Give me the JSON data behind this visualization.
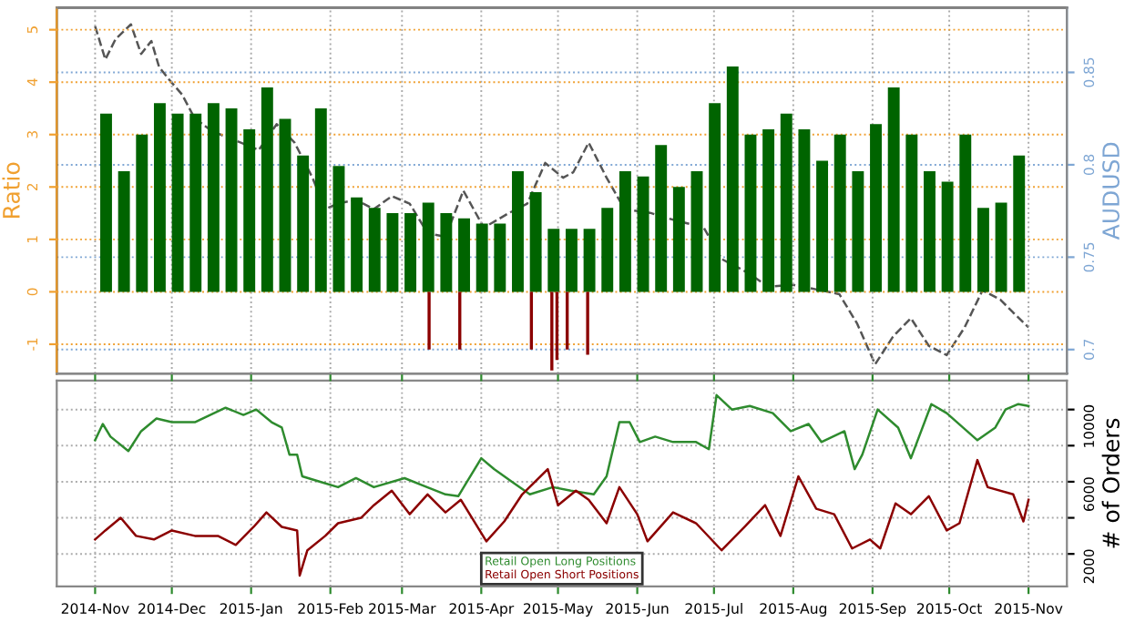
{
  "chart_data": [
    {
      "type": "bar",
      "ylabel": "Ratio",
      "y2label": "AUDUSD",
      "tick_labels": "y",
      "grid": true,
      "xlim": [
        "2014-10-17",
        "2015-11-16"
      ],
      "xticks": [
        {
          "value": "2014-11-01",
          "label": null
        },
        {
          "value": "2014-12-01",
          "label": null
        },
        {
          "value": "2015-01-01",
          "label": null
        },
        {
          "value": "2015-02-01",
          "label": null
        },
        {
          "value": "2015-03-01",
          "label": null
        },
        {
          "value": "2015-04-01",
          "label": null
        },
        {
          "value": "2015-05-01",
          "label": null
        },
        {
          "value": "2015-06-01",
          "label": null
        },
        {
          "value": "2015-07-01",
          "label": null
        },
        {
          "value": "2015-08-01",
          "label": null
        },
        {
          "value": "2015-09-01",
          "label": null
        },
        {
          "value": "2015-10-01",
          "label": null
        },
        {
          "value": "2015-11-01",
          "label": null
        }
      ],
      "ylim": [
        -1.56,
        5.42
      ],
      "yticks": [
        -1,
        0,
        1,
        2,
        3,
        4,
        5
      ],
      "y2lim": [
        0.687,
        0.885
      ],
      "y2ticks": [
        0.7,
        0.75,
        0.8,
        0.85
      ],
      "series": [
        {
          "type": "bar",
          "color": "#006400",
          "x": [
            "2014-11-03",
            "2014-11-10",
            "2014-11-17",
            "2014-11-24",
            "2014-12-01",
            "2014-12-08",
            "2014-12-15",
            "2014-12-22",
            "2014-12-29",
            "2015-01-05",
            "2015-01-12",
            "2015-01-19",
            "2015-01-26",
            "2015-02-02",
            "2015-02-09",
            "2015-02-16",
            "2015-02-23",
            "2015-03-02",
            "2015-03-09",
            "2015-03-16",
            "2015-03-23",
            "2015-03-30",
            "2015-04-06",
            "2015-04-13",
            "2015-04-20",
            "2015-04-27",
            "2015-05-04",
            "2015-05-11",
            "2015-05-18",
            "2015-05-25",
            "2015-06-01",
            "2015-06-08",
            "2015-06-15",
            "2015-06-22",
            "2015-06-29",
            "2015-07-06",
            "2015-07-13",
            "2015-07-20",
            "2015-07-27",
            "2015-08-03",
            "2015-08-10",
            "2015-08-17",
            "2015-08-24",
            "2015-08-31",
            "2015-09-07",
            "2015-09-14",
            "2015-09-21",
            "2015-09-28",
            "2015-10-05",
            "2015-10-12",
            "2015-10-19",
            "2015-10-26"
          ],
          "values": [
            3.4,
            2.3,
            3.0,
            3.6,
            3.4,
            3.4,
            3.6,
            3.5,
            3.1,
            3.9,
            3.3,
            2.6,
            3.5,
            2.4,
            1.8,
            1.6,
            1.5,
            1.5,
            1.7,
            1.5,
            1.4,
            1.3,
            1.3,
            2.3,
            1.9,
            1.2,
            1.2,
            1.2,
            1.6,
            2.3,
            2.2,
            2.8,
            2.0,
            2.3,
            3.6,
            4.3,
            3.0,
            3.1,
            3.4,
            3.1,
            2.5,
            3.0,
            2.3,
            3.2,
            3.9,
            3.0,
            2.3,
            2.1,
            3.0,
            1.6,
            1.7,
            2.6
          ]
        },
        {
          "type": "bar",
          "color": "#8b0000",
          "x": [
            "2015-03-11",
            "2015-03-23",
            "2015-04-20",
            "2015-04-28",
            "2015-04-30",
            "2015-05-04",
            "2015-05-12"
          ],
          "values": [
            -1.1,
            -1.1,
            -1.1,
            -1.5,
            -1.3,
            -1.1,
            -1.2
          ]
        },
        {
          "type": "line",
          "axis": "y2",
          "color": "#555555",
          "line_style": "dashed",
          "x": [
            "2014-11-01",
            "2014-11-05",
            "2014-11-09",
            "2014-11-15",
            "2014-11-19",
            "2014-11-23",
            "2014-11-26",
            "2014-11-30",
            "2014-12-05",
            "2014-12-10",
            "2014-12-17",
            "2014-12-28",
            "2015-01-04",
            "2015-01-11",
            "2015-01-18",
            "2015-01-25",
            "2015-01-30",
            "2015-02-04",
            "2015-02-11",
            "2015-02-18",
            "2015-02-25",
            "2015-03-04",
            "2015-03-11",
            "2015-03-18",
            "2015-03-25",
            "2015-04-02",
            "2015-04-12",
            "2015-04-19",
            "2015-04-26",
            "2015-05-03",
            "2015-05-07",
            "2015-05-13",
            "2015-05-20",
            "2015-05-27",
            "2015-06-06",
            "2015-06-13",
            "2015-06-27",
            "2015-07-04",
            "2015-07-15",
            "2015-07-22",
            "2015-08-01",
            "2015-08-12",
            "2015-08-19",
            "2015-08-26",
            "2015-09-02",
            "2015-09-09",
            "2015-09-16",
            "2015-09-23",
            "2015-09-30",
            "2015-10-07",
            "2015-10-14",
            "2015-10-21",
            "2015-10-26",
            "2015-11-01"
          ],
          "values": [
            0.875,
            0.857,
            0.868,
            0.876,
            0.86,
            0.867,
            0.853,
            0.846,
            0.838,
            0.825,
            0.818,
            0.812,
            0.808,
            0.822,
            0.812,
            0.793,
            0.776,
            0.779,
            0.781,
            0.776,
            0.783,
            0.779,
            0.763,
            0.761,
            0.786,
            0.766,
            0.774,
            0.779,
            0.801,
            0.793,
            0.796,
            0.812,
            0.793,
            0.776,
            0.774,
            0.771,
            0.766,
            0.749,
            0.741,
            0.734,
            0.735,
            0.732,
            0.73,
            0.714,
            0.692,
            0.707,
            0.717,
            0.702,
            0.697,
            0.712,
            0.732,
            0.727,
            0.72,
            0.712
          ]
        }
      ]
    },
    {
      "type": "line",
      "ylabel": "# of Orders",
      "grid": true,
      "legend": "bottom",
      "xlim": [
        "2014-10-17",
        "2015-11-16"
      ],
      "xticks": [
        {
          "value": "2014-11-01",
          "label": "2014-Nov"
        },
        {
          "value": "2014-12-01",
          "label": "2014-Dec"
        },
        {
          "value": "2015-01-01",
          "label": "2015-Jan"
        },
        {
          "value": "2015-02-01",
          "label": "2015-Feb"
        },
        {
          "value": "2015-03-01",
          "label": "2015-Mar"
        },
        {
          "value": "2015-04-01",
          "label": "2015-Apr"
        },
        {
          "value": "2015-05-01",
          "label": "2015-May"
        },
        {
          "value": "2015-06-01",
          "label": "2015-Jun"
        },
        {
          "value": "2015-07-01",
          "label": "2015-Jul"
        },
        {
          "value": "2015-08-01",
          "label": "2015-Aug"
        },
        {
          "value": "2015-09-01",
          "label": "2015-Sep"
        },
        {
          "value": "2015-10-01",
          "label": "2015-Oct"
        },
        {
          "value": "2015-11-01",
          "label": "2015-Nov"
        }
      ],
      "ylim": [
        200,
        11600
      ],
      "yticks": [
        2000,
        {
          "value": 4000,
          "label": null
        },
        6000,
        {
          "value": 8000,
          "label": null
        },
        10000
      ],
      "series": [
        {
          "name": "Retail Open Long Positions",
          "color": "#2e8b2e",
          "x": [
            "2014-11-01",
            "2014-11-04",
            "2014-11-07",
            "2014-11-14",
            "2014-11-19",
            "2014-11-25",
            "2014-12-01",
            "2014-12-10",
            "2014-12-22",
            "2014-12-29",
            "2015-01-03",
            "2015-01-09",
            "2015-01-13",
            "2015-01-16",
            "2015-01-19",
            "2015-01-21",
            "2015-01-28",
            "2015-02-04",
            "2015-02-11",
            "2015-02-18",
            "2015-03-02",
            "2015-03-09",
            "2015-03-18",
            "2015-03-23",
            "2015-04-01",
            "2015-04-06",
            "2015-04-13",
            "2015-04-20",
            "2015-04-29",
            "2015-05-06",
            "2015-05-15",
            "2015-05-20",
            "2015-05-25",
            "2015-05-29",
            "2015-06-02",
            "2015-06-08",
            "2015-06-15",
            "2015-06-24",
            "2015-06-29",
            "2015-07-02",
            "2015-07-08",
            "2015-07-15",
            "2015-07-24",
            "2015-07-31",
            "2015-08-07",
            "2015-08-12",
            "2015-08-21",
            "2015-08-25",
            "2015-08-28",
            "2015-09-03",
            "2015-09-11",
            "2015-09-16",
            "2015-09-24",
            "2015-09-30",
            "2015-10-12",
            "2015-10-19",
            "2015-10-23",
            "2015-10-28",
            "2015-11-01"
          ],
          "values": [
            8300,
            9200,
            8500,
            7700,
            8800,
            9500,
            9300,
            9300,
            10100,
            9700,
            10000,
            9300,
            9000,
            7500,
            7500,
            6300,
            6000,
            5700,
            6200,
            5700,
            6200,
            5800,
            5300,
            5200,
            7300,
            6700,
            6000,
            5300,
            5700,
            5500,
            5300,
            6300,
            9300,
            9300,
            8200,
            8500,
            8200,
            8200,
            7800,
            10800,
            10000,
            10200,
            9800,
            8800,
            9200,
            8200,
            8800,
            6700,
            7500,
            10000,
            9000,
            7300,
            10300,
            9800,
            8300,
            9000,
            10000,
            10300,
            10200
          ]
        },
        {
          "name": "Retail Open Short Positions",
          "color": "#8b0000",
          "x": [
            "2014-11-01",
            "2014-11-05",
            "2014-11-11",
            "2014-11-17",
            "2014-11-24",
            "2014-12-01",
            "2014-12-10",
            "2014-12-19",
            "2014-12-26",
            "2015-01-02",
            "2015-01-07",
            "2015-01-13",
            "2015-01-19",
            "2015-01-20",
            "2015-01-23",
            "2015-01-30",
            "2015-02-04",
            "2015-02-13",
            "2015-02-18",
            "2015-02-25",
            "2015-03-04",
            "2015-03-11",
            "2015-03-18",
            "2015-03-24",
            "2015-04-03",
            "2015-04-10",
            "2015-04-17",
            "2015-04-27",
            "2015-05-01",
            "2015-05-08",
            "2015-05-13",
            "2015-05-20",
            "2015-05-25",
            "2015-06-01",
            "2015-06-05",
            "2015-06-15",
            "2015-06-24",
            "2015-07-04",
            "2015-07-13",
            "2015-07-21",
            "2015-07-27",
            "2015-08-03",
            "2015-08-10",
            "2015-08-17",
            "2015-08-24",
            "2015-08-31",
            "2015-09-04",
            "2015-09-10",
            "2015-09-16",
            "2015-09-23",
            "2015-09-30",
            "2015-10-05",
            "2015-10-12",
            "2015-10-16",
            "2015-10-26",
            "2015-10-30",
            "2015-11-01"
          ],
          "values": [
            2800,
            3300,
            4000,
            3000,
            2800,
            3300,
            3000,
            3000,
            2500,
            3500,
            4300,
            3500,
            3300,
            800,
            2200,
            3000,
            3700,
            4000,
            4700,
            5500,
            4200,
            5300,
            4300,
            5000,
            2700,
            3800,
            5300,
            6700,
            4700,
            5500,
            5000,
            3700,
            5700,
            4200,
            2700,
            4300,
            3700,
            2200,
            3500,
            4700,
            3000,
            6300,
            4500,
            4200,
            2300,
            2800,
            2300,
            4800,
            4200,
            5200,
            3300,
            3700,
            7200,
            5700,
            5300,
            3800,
            5000
          ]
        }
      ]
    }
  ]
}
